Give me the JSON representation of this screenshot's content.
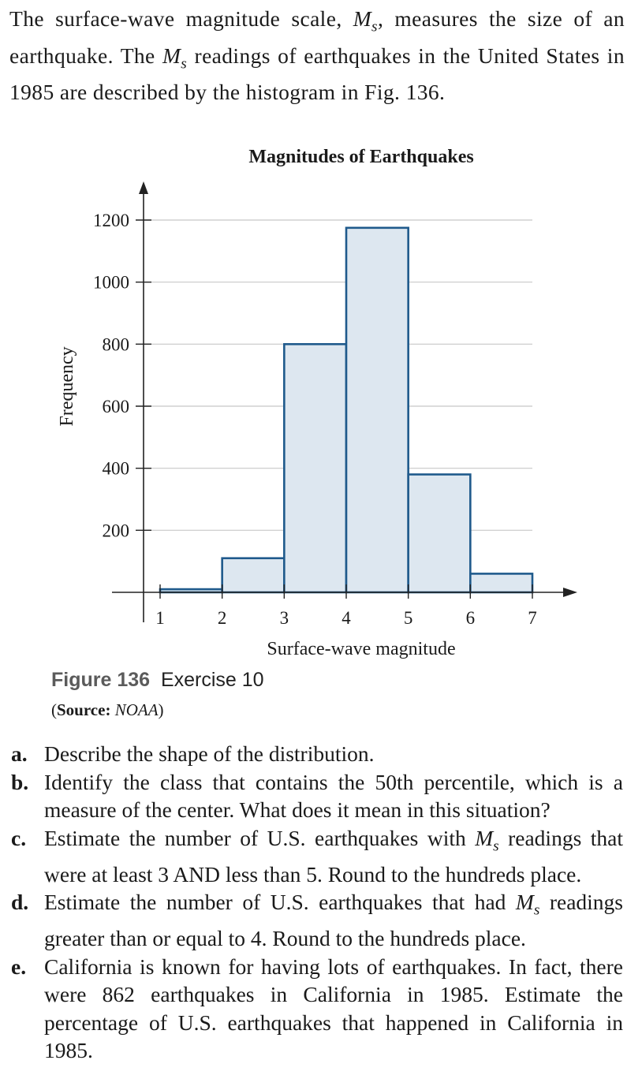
{
  "intro": {
    "part1": "The surface-wave magnitude scale, ",
    "symbol": "M",
    "sub": "s",
    "part2": ", measures the size of an earthquake. The ",
    "part3": " readings of earthquakes in the United States in 1985 are described by the histogram in Fig. 136."
  },
  "chart_data": {
    "type": "bar",
    "title": "Magnitudes of Earthquakes",
    "xlabel": "Surface-wave magnitude",
    "ylabel": "Frequency",
    "x_ticks": [
      "1",
      "2",
      "3",
      "4",
      "5",
      "6",
      "7"
    ],
    "y_ticks": [
      "200",
      "400",
      "600",
      "800",
      "1000",
      "1200"
    ],
    "xlim": [
      1,
      7
    ],
    "ylim": [
      0,
      1200
    ],
    "grid": true,
    "bins": [
      {
        "from": 1,
        "to": 2,
        "value": 10
      },
      {
        "from": 2,
        "to": 3,
        "value": 110
      },
      {
        "from": 3,
        "to": 4,
        "value": 800
      },
      {
        "from": 4,
        "to": 5,
        "value": 1175
      },
      {
        "from": 5,
        "to": 6,
        "value": 380
      },
      {
        "from": 6,
        "to": 7,
        "value": 60
      }
    ],
    "colors": {
      "bar_fill": "#dde7f0",
      "bar_stroke": "#1f5a8c",
      "grid": "#c8c8c8",
      "axis": "#222222"
    }
  },
  "caption": {
    "figure": "Figure 136",
    "exercise": "Exercise 10",
    "source_label": "Source:",
    "source_value": "NOAA"
  },
  "questions": {
    "a": {
      "letter": "a.",
      "text": "Describe the shape of the distribution."
    },
    "b": {
      "letter": "b.",
      "text": "Identify the class that contains the 50th percentile, which is a measure of the center. What does it mean in this situation?"
    },
    "c": {
      "letter": "c.",
      "before": "Estimate the number of U.S. earthquakes with ",
      "after": " readings that were at least 3 AND less than 5. Round to the hundreds place."
    },
    "d": {
      "letter": "d.",
      "before": "Estimate the number of U.S. earthquakes that had ",
      "after": " readings greater than or equal to 4. Round to the hundreds place."
    },
    "e": {
      "letter": "e.",
      "text": "California is known for having lots of earthquakes. In fact, there were 862 earthquakes in California in 1985. Estimate the percentage of U.S. earthquakes that happened in California in 1985."
    }
  }
}
